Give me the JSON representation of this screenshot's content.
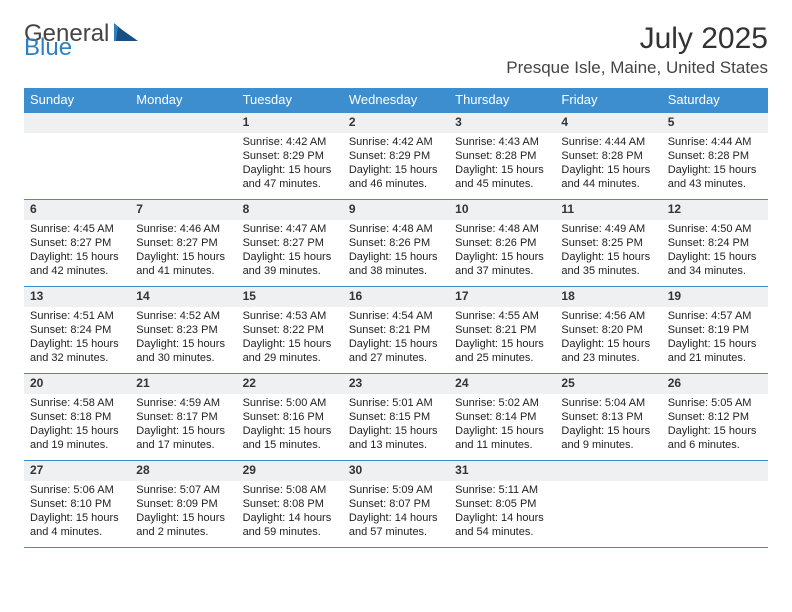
{
  "brand": {
    "word1": "General",
    "word2": "Blue",
    "accent_color": "#2f7fbf"
  },
  "title": {
    "month": "July 2025",
    "location": "Presque Isle, Maine, United States"
  },
  "colors": {
    "header_bg": "#3d8ecf",
    "header_fg": "#ffffff",
    "daynum_bg": "#eff0f1",
    "border": "#3d8ecf",
    "text": "#222222",
    "background": "#ffffff"
  },
  "calendar": {
    "day_names": [
      "Sunday",
      "Monday",
      "Tuesday",
      "Wednesday",
      "Thursday",
      "Friday",
      "Saturday"
    ],
    "weeks": [
      [
        null,
        null,
        {
          "n": "1",
          "sunrise": "Sunrise: 4:42 AM",
          "sunset": "Sunset: 8:29 PM",
          "daylight": "Daylight: 15 hours and 47 minutes."
        },
        {
          "n": "2",
          "sunrise": "Sunrise: 4:42 AM",
          "sunset": "Sunset: 8:29 PM",
          "daylight": "Daylight: 15 hours and 46 minutes."
        },
        {
          "n": "3",
          "sunrise": "Sunrise: 4:43 AM",
          "sunset": "Sunset: 8:28 PM",
          "daylight": "Daylight: 15 hours and 45 minutes."
        },
        {
          "n": "4",
          "sunrise": "Sunrise: 4:44 AM",
          "sunset": "Sunset: 8:28 PM",
          "daylight": "Daylight: 15 hours and 44 minutes."
        },
        {
          "n": "5",
          "sunrise": "Sunrise: 4:44 AM",
          "sunset": "Sunset: 8:28 PM",
          "daylight": "Daylight: 15 hours and 43 minutes."
        }
      ],
      [
        {
          "n": "6",
          "sunrise": "Sunrise: 4:45 AM",
          "sunset": "Sunset: 8:27 PM",
          "daylight": "Daylight: 15 hours and 42 minutes."
        },
        {
          "n": "7",
          "sunrise": "Sunrise: 4:46 AM",
          "sunset": "Sunset: 8:27 PM",
          "daylight": "Daylight: 15 hours and 41 minutes."
        },
        {
          "n": "8",
          "sunrise": "Sunrise: 4:47 AM",
          "sunset": "Sunset: 8:27 PM",
          "daylight": "Daylight: 15 hours and 39 minutes."
        },
        {
          "n": "9",
          "sunrise": "Sunrise: 4:48 AM",
          "sunset": "Sunset: 8:26 PM",
          "daylight": "Daylight: 15 hours and 38 minutes."
        },
        {
          "n": "10",
          "sunrise": "Sunrise: 4:48 AM",
          "sunset": "Sunset: 8:26 PM",
          "daylight": "Daylight: 15 hours and 37 minutes."
        },
        {
          "n": "11",
          "sunrise": "Sunrise: 4:49 AM",
          "sunset": "Sunset: 8:25 PM",
          "daylight": "Daylight: 15 hours and 35 minutes."
        },
        {
          "n": "12",
          "sunrise": "Sunrise: 4:50 AM",
          "sunset": "Sunset: 8:24 PM",
          "daylight": "Daylight: 15 hours and 34 minutes."
        }
      ],
      [
        {
          "n": "13",
          "sunrise": "Sunrise: 4:51 AM",
          "sunset": "Sunset: 8:24 PM",
          "daylight": "Daylight: 15 hours and 32 minutes."
        },
        {
          "n": "14",
          "sunrise": "Sunrise: 4:52 AM",
          "sunset": "Sunset: 8:23 PM",
          "daylight": "Daylight: 15 hours and 30 minutes."
        },
        {
          "n": "15",
          "sunrise": "Sunrise: 4:53 AM",
          "sunset": "Sunset: 8:22 PM",
          "daylight": "Daylight: 15 hours and 29 minutes."
        },
        {
          "n": "16",
          "sunrise": "Sunrise: 4:54 AM",
          "sunset": "Sunset: 8:21 PM",
          "daylight": "Daylight: 15 hours and 27 minutes."
        },
        {
          "n": "17",
          "sunrise": "Sunrise: 4:55 AM",
          "sunset": "Sunset: 8:21 PM",
          "daylight": "Daylight: 15 hours and 25 minutes."
        },
        {
          "n": "18",
          "sunrise": "Sunrise: 4:56 AM",
          "sunset": "Sunset: 8:20 PM",
          "daylight": "Daylight: 15 hours and 23 minutes."
        },
        {
          "n": "19",
          "sunrise": "Sunrise: 4:57 AM",
          "sunset": "Sunset: 8:19 PM",
          "daylight": "Daylight: 15 hours and 21 minutes."
        }
      ],
      [
        {
          "n": "20",
          "sunrise": "Sunrise: 4:58 AM",
          "sunset": "Sunset: 8:18 PM",
          "daylight": "Daylight: 15 hours and 19 minutes."
        },
        {
          "n": "21",
          "sunrise": "Sunrise: 4:59 AM",
          "sunset": "Sunset: 8:17 PM",
          "daylight": "Daylight: 15 hours and 17 minutes."
        },
        {
          "n": "22",
          "sunrise": "Sunrise: 5:00 AM",
          "sunset": "Sunset: 8:16 PM",
          "daylight": "Daylight: 15 hours and 15 minutes."
        },
        {
          "n": "23",
          "sunrise": "Sunrise: 5:01 AM",
          "sunset": "Sunset: 8:15 PM",
          "daylight": "Daylight: 15 hours and 13 minutes."
        },
        {
          "n": "24",
          "sunrise": "Sunrise: 5:02 AM",
          "sunset": "Sunset: 8:14 PM",
          "daylight": "Daylight: 15 hours and 11 minutes."
        },
        {
          "n": "25",
          "sunrise": "Sunrise: 5:04 AM",
          "sunset": "Sunset: 8:13 PM",
          "daylight": "Daylight: 15 hours and 9 minutes."
        },
        {
          "n": "26",
          "sunrise": "Sunrise: 5:05 AM",
          "sunset": "Sunset: 8:12 PM",
          "daylight": "Daylight: 15 hours and 6 minutes."
        }
      ],
      [
        {
          "n": "27",
          "sunrise": "Sunrise: 5:06 AM",
          "sunset": "Sunset: 8:10 PM",
          "daylight": "Daylight: 15 hours and 4 minutes."
        },
        {
          "n": "28",
          "sunrise": "Sunrise: 5:07 AM",
          "sunset": "Sunset: 8:09 PM",
          "daylight": "Daylight: 15 hours and 2 minutes."
        },
        {
          "n": "29",
          "sunrise": "Sunrise: 5:08 AM",
          "sunset": "Sunset: 8:08 PM",
          "daylight": "Daylight: 14 hours and 59 minutes."
        },
        {
          "n": "30",
          "sunrise": "Sunrise: 5:09 AM",
          "sunset": "Sunset: 8:07 PM",
          "daylight": "Daylight: 14 hours and 57 minutes."
        },
        {
          "n": "31",
          "sunrise": "Sunrise: 5:11 AM",
          "sunset": "Sunset: 8:05 PM",
          "daylight": "Daylight: 14 hours and 54 minutes."
        },
        null,
        null
      ]
    ]
  }
}
